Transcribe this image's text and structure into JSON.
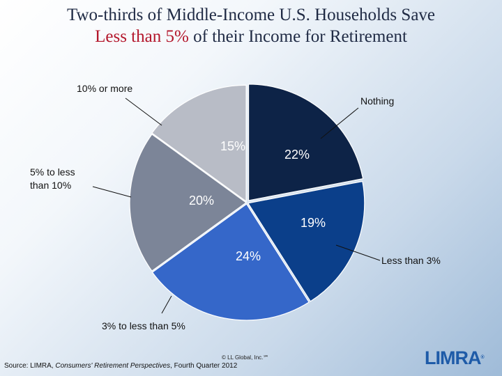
{
  "title": {
    "line1": "Two-thirds of Middle-Income U.S. Households Save",
    "line2_accent": "Less than 5%",
    "line2_rest": " of their Income for Retirement"
  },
  "chart_data": {
    "type": "pie",
    "title": "Two-thirds of Middle-Income U.S. Households Save Less than 5% of their Income for Retirement",
    "start": "12 o'clock, clockwise",
    "slices": [
      {
        "label": "Nothing",
        "value": 22,
        "value_label": "22%",
        "color": "#0d2347"
      },
      {
        "label": "Less than 3%",
        "value": 19,
        "value_label": "19%",
        "color": "#0b3f8a"
      },
      {
        "label": "3% to less than 5%",
        "value": 24,
        "value_label": "24%",
        "color": "#3567c9"
      },
      {
        "label": "5% to less than 10%",
        "value": 20,
        "value_label": "20%",
        "color": "#7c8598"
      },
      {
        "label": "10% or more",
        "value": 15,
        "value_label": "15%",
        "color": "#b8bcc6"
      }
    ]
  },
  "source": {
    "prefix": "Source: LIMRA, ",
    "italic": "Consumers' Retirement Perspectives",
    "suffix": ", Fourth Quarter 2012"
  },
  "copyright": "© LL Global, Inc.℠",
  "logo": {
    "text": "LIMRA",
    "mark": "®"
  }
}
